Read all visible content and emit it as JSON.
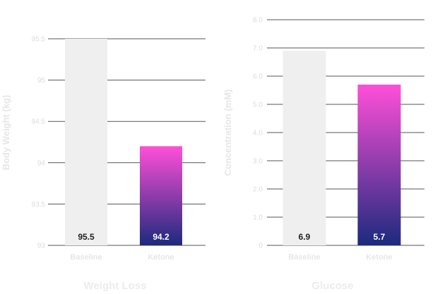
{
  "chart_data": [
    {
      "type": "bar",
      "title": "Weight Loss",
      "ylabel": "Body Weight (kg)",
      "categories": [
        "Baseline",
        "Ketone"
      ],
      "values": [
        95.5,
        94.2
      ],
      "value_labels": [
        "95.5",
        "94.2"
      ],
      "ylim": [
        93,
        95.5
      ],
      "yticks": [
        "93",
        "93.5",
        "94",
        "94.5",
        "95",
        "95.5"
      ],
      "grid": true
    },
    {
      "type": "bar",
      "title": "Glucose",
      "ylabel": "Concentration (mM)",
      "categories": [
        "Baseline",
        "Ketone"
      ],
      "values": [
        6.9,
        5.7
      ],
      "value_labels": [
        "6.9",
        "5.7"
      ],
      "ylim": [
        0,
        8
      ],
      "yticks": [
        "0",
        "1.0",
        "2.0",
        "3.0",
        "4.0",
        "5.0",
        "6.0",
        "7.0",
        "8.0"
      ],
      "grid": true
    }
  ],
  "colors": {
    "baseline_bar": "#efefef",
    "ketone_gradient_top": "#ff4fd8",
    "ketone_gradient_bottom": "#1c2a7e",
    "gridline": "#555555",
    "baseline_value_text": "#222222",
    "ketone_value_text": "#ffffff"
  }
}
